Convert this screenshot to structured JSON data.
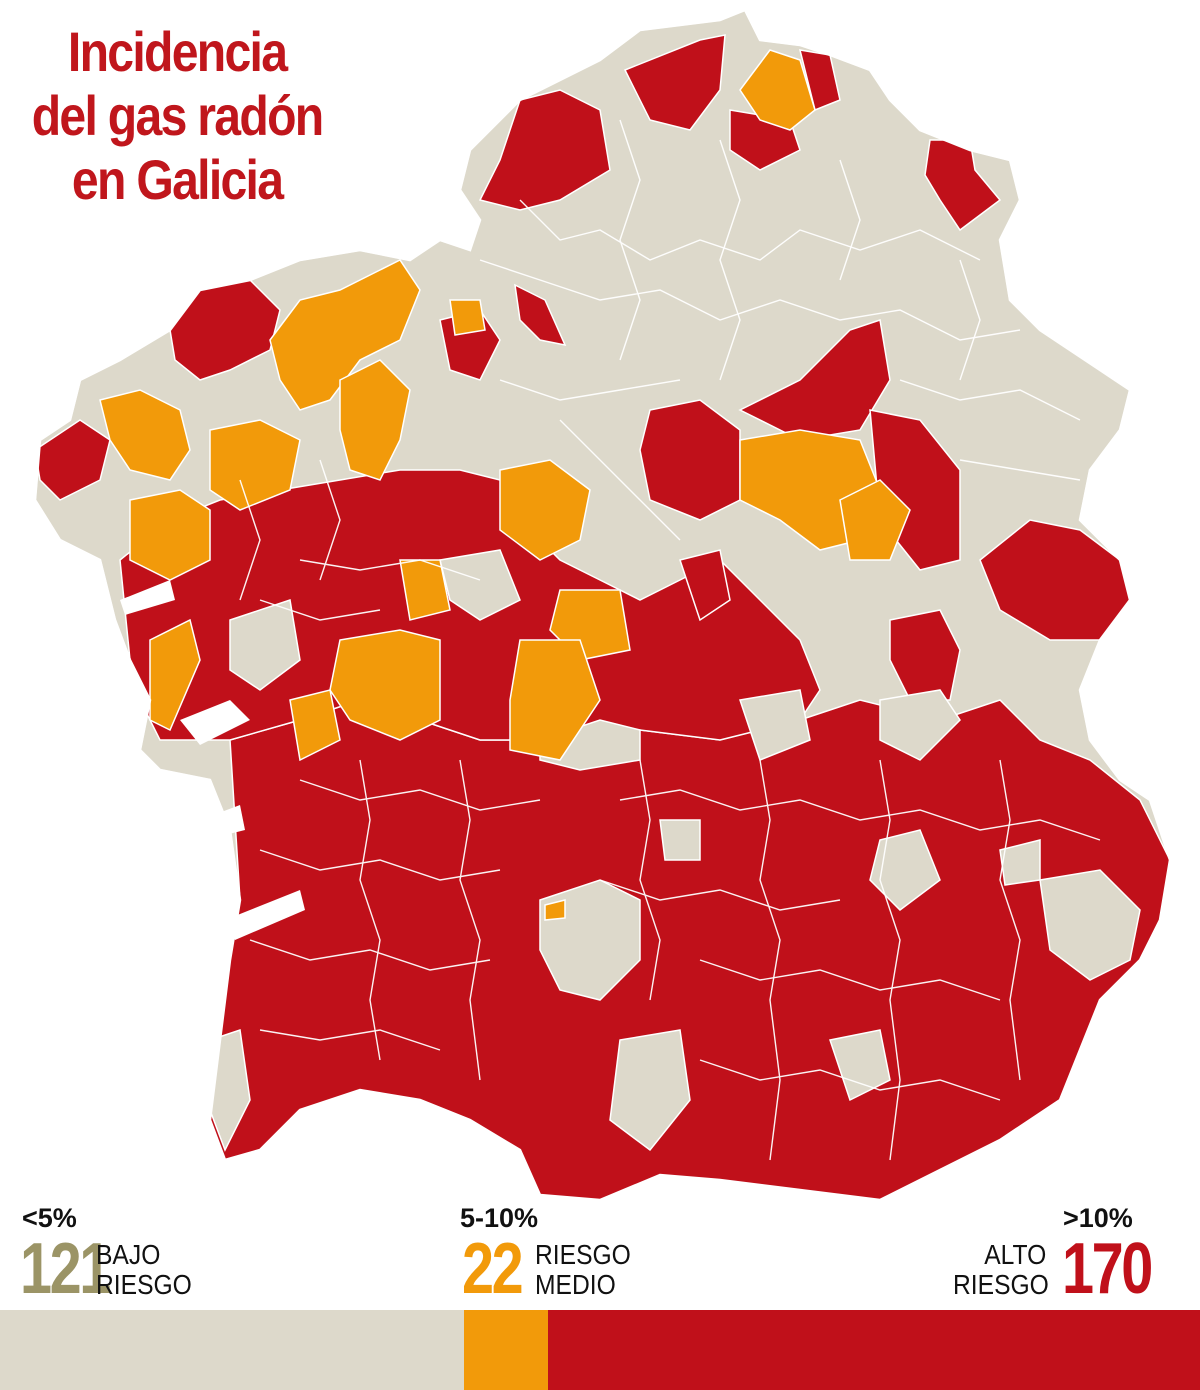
{
  "title": {
    "line1": "Incidencia",
    "line2": "del gas radón",
    "line3": "en Galicia"
  },
  "colors": {
    "low": "#ddd9cb",
    "medium": "#f29a0a",
    "high": "#c0101a",
    "title": "#c0161c",
    "low_count": "#9b9466",
    "medium_count": "#f29a0a",
    "high_count": "#c0101a"
  },
  "legend": {
    "low": {
      "pct": "<5%",
      "count": "121",
      "label1": "BAJO",
      "label2": "RIESGO"
    },
    "medium": {
      "pct": "5-10%",
      "count": "22",
      "label1": "RIESGO",
      "label2": "MEDIO"
    },
    "high": {
      "pct": ">10%",
      "count": "170",
      "label1": "ALTO",
      "label2": "RIESGO"
    }
  },
  "proportion_bar": {
    "low_count": 121,
    "medium_count": 22,
    "high_count": 170
  }
}
